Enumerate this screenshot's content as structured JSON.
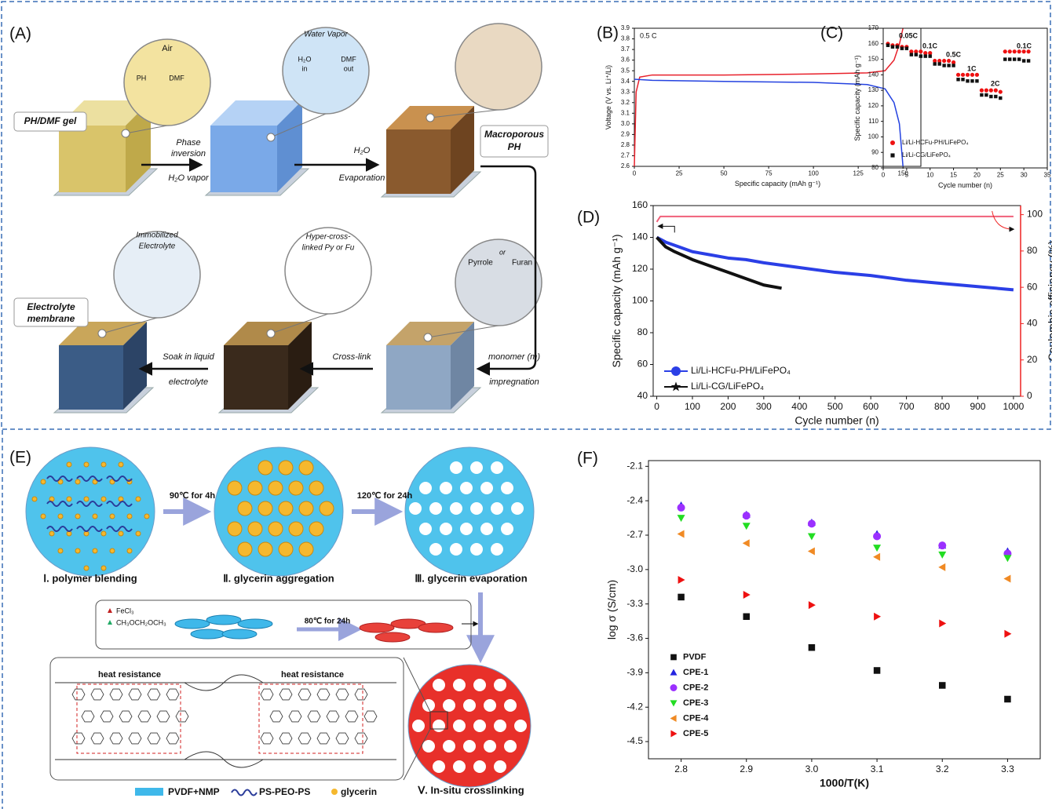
{
  "panel_a": {
    "label": "(A)",
    "texts": [
      "Air",
      "PH",
      "DMF",
      "PH/DMF gel",
      "Phase",
      "inversion",
      "H₂O vapor",
      "Water Vapor",
      "H₂O",
      "in",
      "DMF",
      "out",
      "H₂O",
      "Evaporation",
      "Macroporous",
      "PH",
      "Pyrrole",
      "or",
      "Furan",
      "monomer (m)",
      "impregnation",
      "Hyper-cross-",
      "linked Py or Fu",
      "Cross-link",
      "Immobilized",
      "Electrolyte",
      "Electrolyte",
      "membrane",
      "Soak in liquid",
      "electrolyte"
    ]
  },
  "panel_e": {
    "label": "(E)",
    "texts": [
      "90℃ for 4h",
      "120℃ for 24h",
      "Ⅰ. polymer blending",
      "Ⅱ. glycerin aggregation",
      "Ⅲ. glycerin evaporation",
      "FeCl₃",
      "CH₃OCH₂OCH₃",
      "80℃ for 24h",
      "heat resistance",
      "heat resistance",
      "Ⅴ. In-situ crosslinking",
      "PVDF+NMP",
      "PS-PEO-PS",
      "glycerin"
    ]
  },
  "chart_data": [
    {
      "type": "line",
      "panel_label": "(B)",
      "x_label": "Specific capacity (mAh g⁻¹)",
      "y_label": "Voltage (V vs. Li⁺/Li)",
      "annotations": [
        "0.5 C"
      ],
      "xlim": [
        0,
        160
      ],
      "xticks": [
        0,
        25,
        50,
        75,
        100,
        125,
        150
      ],
      "ylim": [
        2.6,
        3.9
      ],
      "yticks": [
        2.6,
        2.7,
        2.8,
        2.9,
        {
          "value": 3,
          "label": "3.0"
        },
        3.1,
        3.2,
        3.3,
        3.4,
        3.5,
        3.6,
        3.7,
        3.8,
        3.9
      ],
      "series": [
        {
          "color": "#e8212b",
          "x": [
            0,
            1,
            3,
            10,
            50,
            100,
            130,
            140,
            145,
            148,
            150
          ],
          "values": [
            2.6,
            3.3,
            3.44,
            3.46,
            3.46,
            3.47,
            3.48,
            3.5,
            3.6,
            3.75,
            3.9
          ]
        },
        {
          "color": "#2442e0",
          "x": [
            0,
            10,
            50,
            100,
            130,
            140,
            145,
            148,
            150
          ],
          "values": [
            3.42,
            3.41,
            3.4,
            3.39,
            3.37,
            3.33,
            3.2,
            3.0,
            2.6
          ]
        }
      ]
    },
    {
      "type": "scatter",
      "panel_label": "(C)",
      "x_label": "Cycle number (n)",
      "y_label": "Specific capacity (mAh g⁻¹)",
      "legend": "lower left",
      "annotations": [
        "0.05C",
        "0.1C",
        "0.5C",
        "1C",
        "2C",
        "0.1C"
      ],
      "annotation_color": "#2740e0",
      "xlim": [
        0,
        35
      ],
      "xticks": [
        0,
        5,
        10,
        15,
        20,
        25,
        30,
        35
      ],
      "ylim": [
        80,
        170
      ],
      "yticks": [
        80,
        90,
        100,
        110,
        120,
        130,
        140,
        150,
        160,
        170
      ],
      "x": [
        1,
        2,
        3,
        4,
        5,
        6,
        7,
        8,
        9,
        10,
        11,
        12,
        13,
        14,
        15,
        16,
        17,
        18,
        19,
        20,
        21,
        22,
        23,
        24,
        25,
        26,
        27,
        28,
        29,
        30,
        31
      ],
      "series": [
        {
          "name": "Li/Li-HCFu-PH/LiFePO₄",
          "color": "#ee1111",
          "marker": "circle",
          "values": [
            160,
            159,
            159,
            158,
            158,
            155,
            155,
            155,
            154,
            154,
            149,
            149,
            149,
            149,
            148,
            140,
            140,
            140,
            140,
            140,
            130,
            130,
            130,
            130,
            129,
            155,
            155,
            155,
            155,
            155,
            155
          ]
        },
        {
          "name": "Li/Li-CG/LiFePO₄",
          "color": "#111111",
          "marker": "square",
          "values": [
            159,
            158,
            158,
            157,
            157,
            153,
            153,
            152,
            152,
            152,
            147,
            147,
            146,
            146,
            146,
            137,
            137,
            136,
            136,
            136,
            127,
            127,
            126,
            126,
            125,
            150,
            150,
            150,
            150,
            149,
            149
          ]
        }
      ]
    },
    {
      "type": "line",
      "panel_label": "(D)",
      "x_label": "Cycle number (n)",
      "y_label": "Specific capacity (mAh g⁻¹)",
      "y2_label": "Coulombic efficiency (%)",
      "legend": "lower left",
      "xlim": [
        -10,
        1020
      ],
      "xticks": [
        0,
        100,
        200,
        300,
        400,
        500,
        600,
        700,
        800,
        900,
        1000
      ],
      "ylim": [
        40,
        160
      ],
      "yticks": [
        40,
        60,
        80,
        100,
        120,
        140,
        160
      ],
      "y2lim": [
        0,
        105
      ],
      "y2ticks": [
        0,
        20,
        40,
        60,
        80,
        100
      ],
      "y2_color": "#ee2222",
      "series": [
        {
          "name": "Li/Li-HCFu-PH/LiFePO₄",
          "color": "#2b3fe6",
          "marker": "circle",
          "x": [
            0,
            25,
            50,
            100,
            150,
            200,
            250,
            300,
            400,
            500,
            600,
            700,
            800,
            900,
            1000
          ],
          "values": [
            140,
            137,
            135,
            131,
            129,
            127,
            126,
            124,
            121,
            118,
            116,
            113,
            111,
            109,
            107
          ]
        },
        {
          "name": "Li/Li-CG/LiFePO₄",
          "color": "#111111",
          "marker": "star",
          "x": [
            0,
            25,
            50,
            100,
            150,
            200,
            250,
            300,
            350
          ],
          "values": [
            140,
            134,
            131,
            126,
            122,
            118,
            114,
            110,
            108
          ]
        },
        {
          "color": "#f0607a",
          "axis": "y2",
          "x": [
            0,
            10,
            100,
            200,
            300,
            400,
            500,
            600,
            700,
            800,
            900,
            1000
          ],
          "values": [
            96,
            99,
            99,
            99,
            99,
            99,
            99,
            99,
            99,
            99,
            99,
            99
          ]
        }
      ]
    },
    {
      "type": "scatter",
      "panel_label": "(F)",
      "x_label": "1000/T(K)",
      "y_label": "log σ (S/cm)",
      "legend": "lower left",
      "xlim": [
        2.75,
        3.35
      ],
      "xticks": [
        2.8,
        2.9,
        {
          "value": 3,
          "label": "3.0"
        },
        3.1,
        3.2,
        3.3
      ],
      "ylim": [
        -4.65,
        -2.05
      ],
      "yticks": [
        -2.1,
        -2.4,
        -2.7,
        {
          "value": -3,
          "label": "-3.0"
        },
        -3.3,
        -3.6,
        -3.9,
        -4.2,
        -4.5
      ],
      "x": [
        2.8,
        2.9,
        3.0,
        3.1,
        3.2,
        3.3
      ],
      "series": [
        {
          "name": "PVDF",
          "color": "#111111",
          "marker": "square",
          "values": [
            -3.24,
            -3.41,
            -3.68,
            -3.88,
            -4.01,
            -4.13
          ]
        },
        {
          "name": "CPE-1",
          "color": "#2424e0",
          "marker": "triangle-up",
          "values": [
            -2.44,
            -2.52,
            -2.59,
            -2.69,
            -2.79,
            -2.84
          ]
        },
        {
          "name": "CPE-2",
          "color": "#9b30ff",
          "marker": "circle",
          "values": [
            -2.46,
            -2.53,
            -2.6,
            -2.71,
            -2.79,
            -2.86
          ]
        },
        {
          "name": "CPE-3",
          "color": "#22dd22",
          "marker": "triangle-down",
          "values": [
            -2.55,
            -2.62,
            -2.71,
            -2.81,
            -2.87,
            -2.9
          ]
        },
        {
          "name": "CPE-4",
          "color": "#f08a24",
          "marker": "triangle-left",
          "values": [
            -2.69,
            -2.77,
            -2.84,
            -2.89,
            -2.98,
            -3.08
          ]
        },
        {
          "name": "CPE-5",
          "color": "#ee1111",
          "marker": "triangle-right",
          "values": [
            -3.09,
            -3.22,
            -3.31,
            -3.41,
            -3.47,
            -3.56
          ]
        }
      ]
    }
  ]
}
